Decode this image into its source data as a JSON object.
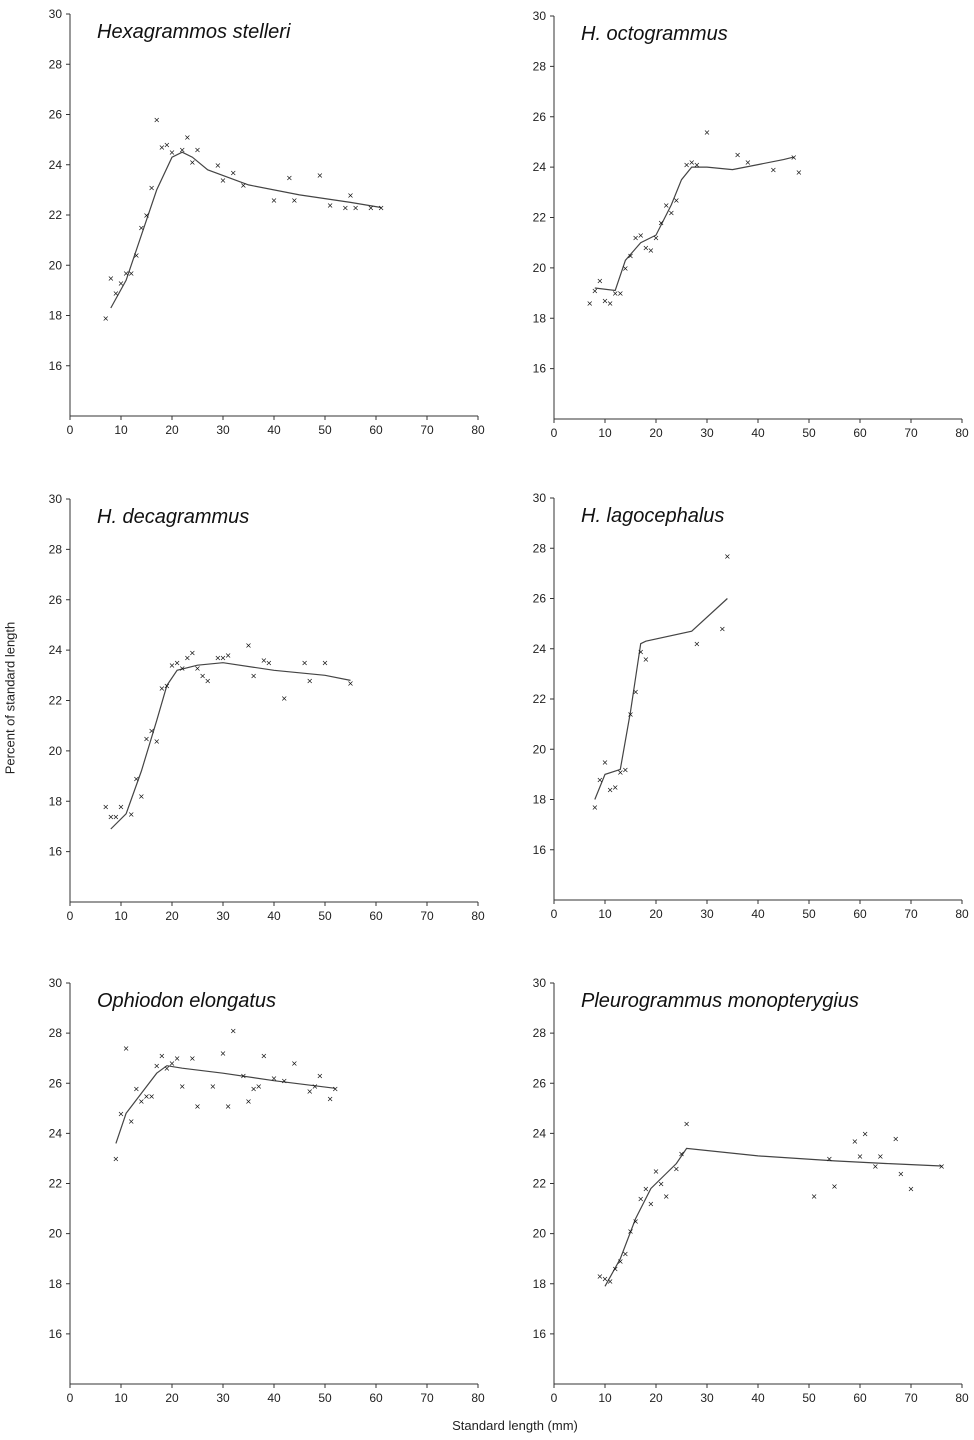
{
  "figure": {
    "ylabel": "Percent of standard length",
    "xlabel": "Standard length (mm)"
  },
  "chart_data": [
    {
      "type": "scatter",
      "title": "Hexagrammos stelleri",
      "xlim": [
        0,
        80
      ],
      "ylim": [
        14,
        30
      ],
      "xticks": [
        "0",
        "10",
        "20",
        "30",
        "40",
        "50",
        "60",
        "70",
        "80"
      ],
      "yticks": [
        "16",
        "18",
        "20",
        "22",
        "24",
        "26",
        "28",
        "30"
      ],
      "points": [
        [
          7,
          17.9
        ],
        [
          8,
          19.5
        ],
        [
          9,
          18.9
        ],
        [
          10,
          19.3
        ],
        [
          11,
          19.7
        ],
        [
          12,
          19.7
        ],
        [
          13,
          20.4
        ],
        [
          14,
          21.5
        ],
        [
          15,
          22.0
        ],
        [
          16,
          23.1
        ],
        [
          17,
          25.8
        ],
        [
          18,
          24.7
        ],
        [
          19,
          24.8
        ],
        [
          20,
          24.5
        ],
        [
          22,
          24.6
        ],
        [
          23,
          25.1
        ],
        [
          24,
          24.1
        ],
        [
          25,
          24.6
        ],
        [
          29,
          24.0
        ],
        [
          30,
          23.4
        ],
        [
          32,
          23.7
        ],
        [
          34,
          23.2
        ],
        [
          40,
          22.6
        ],
        [
          43,
          23.5
        ],
        [
          44,
          22.6
        ],
        [
          49,
          23.6
        ],
        [
          51,
          22.4
        ],
        [
          54,
          22.3
        ],
        [
          55,
          22.8
        ],
        [
          56,
          22.3
        ],
        [
          59,
          22.3
        ],
        [
          61,
          22.3
        ]
      ],
      "fit": [
        [
          8,
          18.3
        ],
        [
          11,
          19.4
        ],
        [
          14,
          21.2
        ],
        [
          17,
          23.0
        ],
        [
          20,
          24.3
        ],
        [
          22,
          24.5
        ],
        [
          24,
          24.3
        ],
        [
          27,
          23.8
        ],
        [
          35,
          23.2
        ],
        [
          45,
          22.8
        ],
        [
          55,
          22.5
        ],
        [
          61,
          22.3
        ]
      ]
    },
    {
      "type": "scatter",
      "title": "H. octogrammus",
      "xlim": [
        0,
        80
      ],
      "ylim": [
        14,
        30
      ],
      "xticks": [
        "0",
        "10",
        "20",
        "30",
        "40",
        "50",
        "60",
        "70",
        "80"
      ],
      "yticks": [
        "16",
        "18",
        "20",
        "22",
        "24",
        "26",
        "28",
        "30"
      ],
      "points": [
        [
          7,
          18.6
        ],
        [
          8,
          19.1
        ],
        [
          9,
          19.5
        ],
        [
          10,
          18.7
        ],
        [
          11,
          18.6
        ],
        [
          12,
          19.0
        ],
        [
          13,
          19.0
        ],
        [
          14,
          20.0
        ],
        [
          15,
          20.5
        ],
        [
          16,
          21.2
        ],
        [
          17,
          21.3
        ],
        [
          18,
          20.8
        ],
        [
          19,
          20.7
        ],
        [
          20,
          21.2
        ],
        [
          21,
          21.8
        ],
        [
          22,
          22.5
        ],
        [
          23,
          22.2
        ],
        [
          24,
          22.7
        ],
        [
          26,
          24.1
        ],
        [
          27,
          24.2
        ],
        [
          28,
          24.1
        ],
        [
          30,
          25.4
        ],
        [
          36,
          24.5
        ],
        [
          38,
          24.2
        ],
        [
          43,
          23.9
        ],
        [
          47,
          24.4
        ],
        [
          48,
          23.8
        ]
      ],
      "fit": [
        [
          8,
          19.2
        ],
        [
          12,
          19.1
        ],
        [
          14,
          20.3
        ],
        [
          17,
          21.0
        ],
        [
          20,
          21.3
        ],
        [
          23,
          22.5
        ],
        [
          25,
          23.5
        ],
        [
          27,
          24.0
        ],
        [
          30,
          24.0
        ],
        [
          35,
          23.9
        ],
        [
          40,
          24.1
        ],
        [
          45,
          24.3
        ],
        [
          47,
          24.4
        ]
      ]
    },
    {
      "type": "scatter",
      "title": "H. decagrammus",
      "xlim": [
        0,
        80
      ],
      "ylim": [
        14,
        30
      ],
      "xticks": [
        "0",
        "10",
        "20",
        "30",
        "40",
        "50",
        "60",
        "70",
        "80"
      ],
      "yticks": [
        "16",
        "18",
        "20",
        "22",
        "24",
        "26",
        "28",
        "30"
      ],
      "points": [
        [
          7,
          17.8
        ],
        [
          8,
          17.4
        ],
        [
          9,
          17.4
        ],
        [
          10,
          17.8
        ],
        [
          12,
          17.5
        ],
        [
          13,
          18.9
        ],
        [
          14,
          18.2
        ],
        [
          15,
          20.5
        ],
        [
          16,
          20.8
        ],
        [
          17,
          20.4
        ],
        [
          18,
          22.5
        ],
        [
          19,
          22.6
        ],
        [
          20,
          23.4
        ],
        [
          21,
          23.5
        ],
        [
          22,
          23.3
        ],
        [
          23,
          23.7
        ],
        [
          24,
          23.9
        ],
        [
          25,
          23.3
        ],
        [
          26,
          23.0
        ],
        [
          27,
          22.8
        ],
        [
          29,
          23.7
        ],
        [
          30,
          23.7
        ],
        [
          31,
          23.8
        ],
        [
          35,
          24.2
        ],
        [
          36,
          23.0
        ],
        [
          38,
          23.6
        ],
        [
          39,
          23.5
        ],
        [
          42,
          22.1
        ],
        [
          46,
          23.5
        ],
        [
          47,
          22.8
        ],
        [
          50,
          23.5
        ],
        [
          55,
          22.7
        ]
      ],
      "fit": [
        [
          8,
          16.9
        ],
        [
          11,
          17.5
        ],
        [
          14,
          19.2
        ],
        [
          17,
          21.2
        ],
        [
          19,
          22.6
        ],
        [
          21,
          23.2
        ],
        [
          25,
          23.4
        ],
        [
          30,
          23.5
        ],
        [
          40,
          23.2
        ],
        [
          50,
          23.0
        ],
        [
          55,
          22.8
        ]
      ]
    },
    {
      "type": "scatter",
      "title": "H. lagocephalus",
      "xlim": [
        0,
        80
      ],
      "ylim": [
        14,
        30
      ],
      "xticks": [
        "0",
        "10",
        "20",
        "30",
        "40",
        "50",
        "60",
        "70",
        "80"
      ],
      "yticks": [
        "16",
        "18",
        "20",
        "22",
        "24",
        "26",
        "28",
        "30"
      ],
      "points": [
        [
          8,
          17.7
        ],
        [
          9,
          18.8
        ],
        [
          10,
          19.5
        ],
        [
          11,
          18.4
        ],
        [
          12,
          18.5
        ],
        [
          13,
          19.1
        ],
        [
          14,
          19.2
        ],
        [
          15,
          21.4
        ],
        [
          16,
          22.3
        ],
        [
          17,
          23.9
        ],
        [
          18,
          23.6
        ],
        [
          28,
          24.2
        ],
        [
          33,
          24.8
        ],
        [
          34,
          27.7
        ]
      ],
      "fit": [
        [
          8,
          18.0
        ],
        [
          10,
          19.0
        ],
        [
          13,
          19.2
        ],
        [
          15,
          21.5
        ],
        [
          17,
          24.2
        ],
        [
          18,
          24.3
        ],
        [
          27,
          24.7
        ],
        [
          34,
          26.0
        ]
      ]
    },
    {
      "type": "scatter",
      "title": "Ophiodon elongatus",
      "xlim": [
        0,
        80
      ],
      "ylim": [
        14,
        30
      ],
      "xticks": [
        "0",
        "10",
        "20",
        "30",
        "40",
        "50",
        "60",
        "70",
        "80"
      ],
      "yticks": [
        "16",
        "18",
        "20",
        "22",
        "24",
        "26",
        "28",
        "30"
      ],
      "points": [
        [
          9,
          23.0
        ],
        [
          10,
          24.8
        ],
        [
          11,
          27.4
        ],
        [
          12,
          24.5
        ],
        [
          13,
          25.8
        ],
        [
          14,
          25.3
        ],
        [
          15,
          25.5
        ],
        [
          16,
          25.5
        ],
        [
          17,
          26.7
        ],
        [
          18,
          27.1
        ],
        [
          19,
          26.6
        ],
        [
          20,
          26.8
        ],
        [
          21,
          27.0
        ],
        [
          22,
          25.9
        ],
        [
          24,
          27.0
        ],
        [
          25,
          25.1
        ],
        [
          28,
          25.9
        ],
        [
          30,
          27.2
        ],
        [
          31,
          25.1
        ],
        [
          32,
          28.1
        ],
        [
          34,
          26.3
        ],
        [
          35,
          25.3
        ],
        [
          36,
          25.8
        ],
        [
          37,
          25.9
        ],
        [
          38,
          27.1
        ],
        [
          40,
          26.2
        ],
        [
          42,
          26.1
        ],
        [
          44,
          26.8
        ],
        [
          47,
          25.7
        ],
        [
          48,
          25.9
        ],
        [
          49,
          26.3
        ],
        [
          51,
          25.4
        ],
        [
          52,
          25.8
        ]
      ],
      "fit": [
        [
          9,
          23.6
        ],
        [
          11,
          24.8
        ],
        [
          14,
          25.6
        ],
        [
          17,
          26.4
        ],
        [
          19,
          26.7
        ],
        [
          22,
          26.6
        ],
        [
          30,
          26.4
        ],
        [
          40,
          26.1
        ],
        [
          52,
          25.8
        ]
      ]
    },
    {
      "type": "scatter",
      "title": "Pleurogrammus monopterygius",
      "xlim": [
        0,
        80
      ],
      "ylim": [
        14,
        30
      ],
      "xticks": [
        "0",
        "10",
        "20",
        "30",
        "40",
        "50",
        "60",
        "70",
        "80"
      ],
      "yticks": [
        "16",
        "18",
        "20",
        "22",
        "24",
        "26",
        "28",
        "30"
      ],
      "points": [
        [
          9,
          18.3
        ],
        [
          10,
          18.2
        ],
        [
          11,
          18.1
        ],
        [
          12,
          18.6
        ],
        [
          13,
          18.9
        ],
        [
          14,
          19.2
        ],
        [
          15,
          20.1
        ],
        [
          16,
          20.5
        ],
        [
          17,
          21.4
        ],
        [
          18,
          21.8
        ],
        [
          19,
          21.2
        ],
        [
          20,
          22.5
        ],
        [
          21,
          22.0
        ],
        [
          22,
          21.5
        ],
        [
          24,
          22.6
        ],
        [
          25,
          23.2
        ],
        [
          26,
          24.4
        ],
        [
          51,
          21.5
        ],
        [
          54,
          23.0
        ],
        [
          55,
          21.9
        ],
        [
          59,
          23.7
        ],
        [
          60,
          23.1
        ],
        [
          61,
          24.0
        ],
        [
          63,
          22.7
        ],
        [
          64,
          23.1
        ],
        [
          67,
          23.8
        ],
        [
          68,
          22.4
        ],
        [
          70,
          21.8
        ],
        [
          76,
          22.7
        ]
      ],
      "fit": [
        [
          10,
          17.9
        ],
        [
          13,
          19.0
        ],
        [
          16,
          20.6
        ],
        [
          19,
          21.8
        ],
        [
          22,
          22.4
        ],
        [
          24,
          22.8
        ],
        [
          26,
          23.4
        ],
        [
          40,
          23.1
        ],
        [
          55,
          22.9
        ],
        [
          65,
          22.8
        ],
        [
          76,
          22.7
        ]
      ]
    }
  ]
}
